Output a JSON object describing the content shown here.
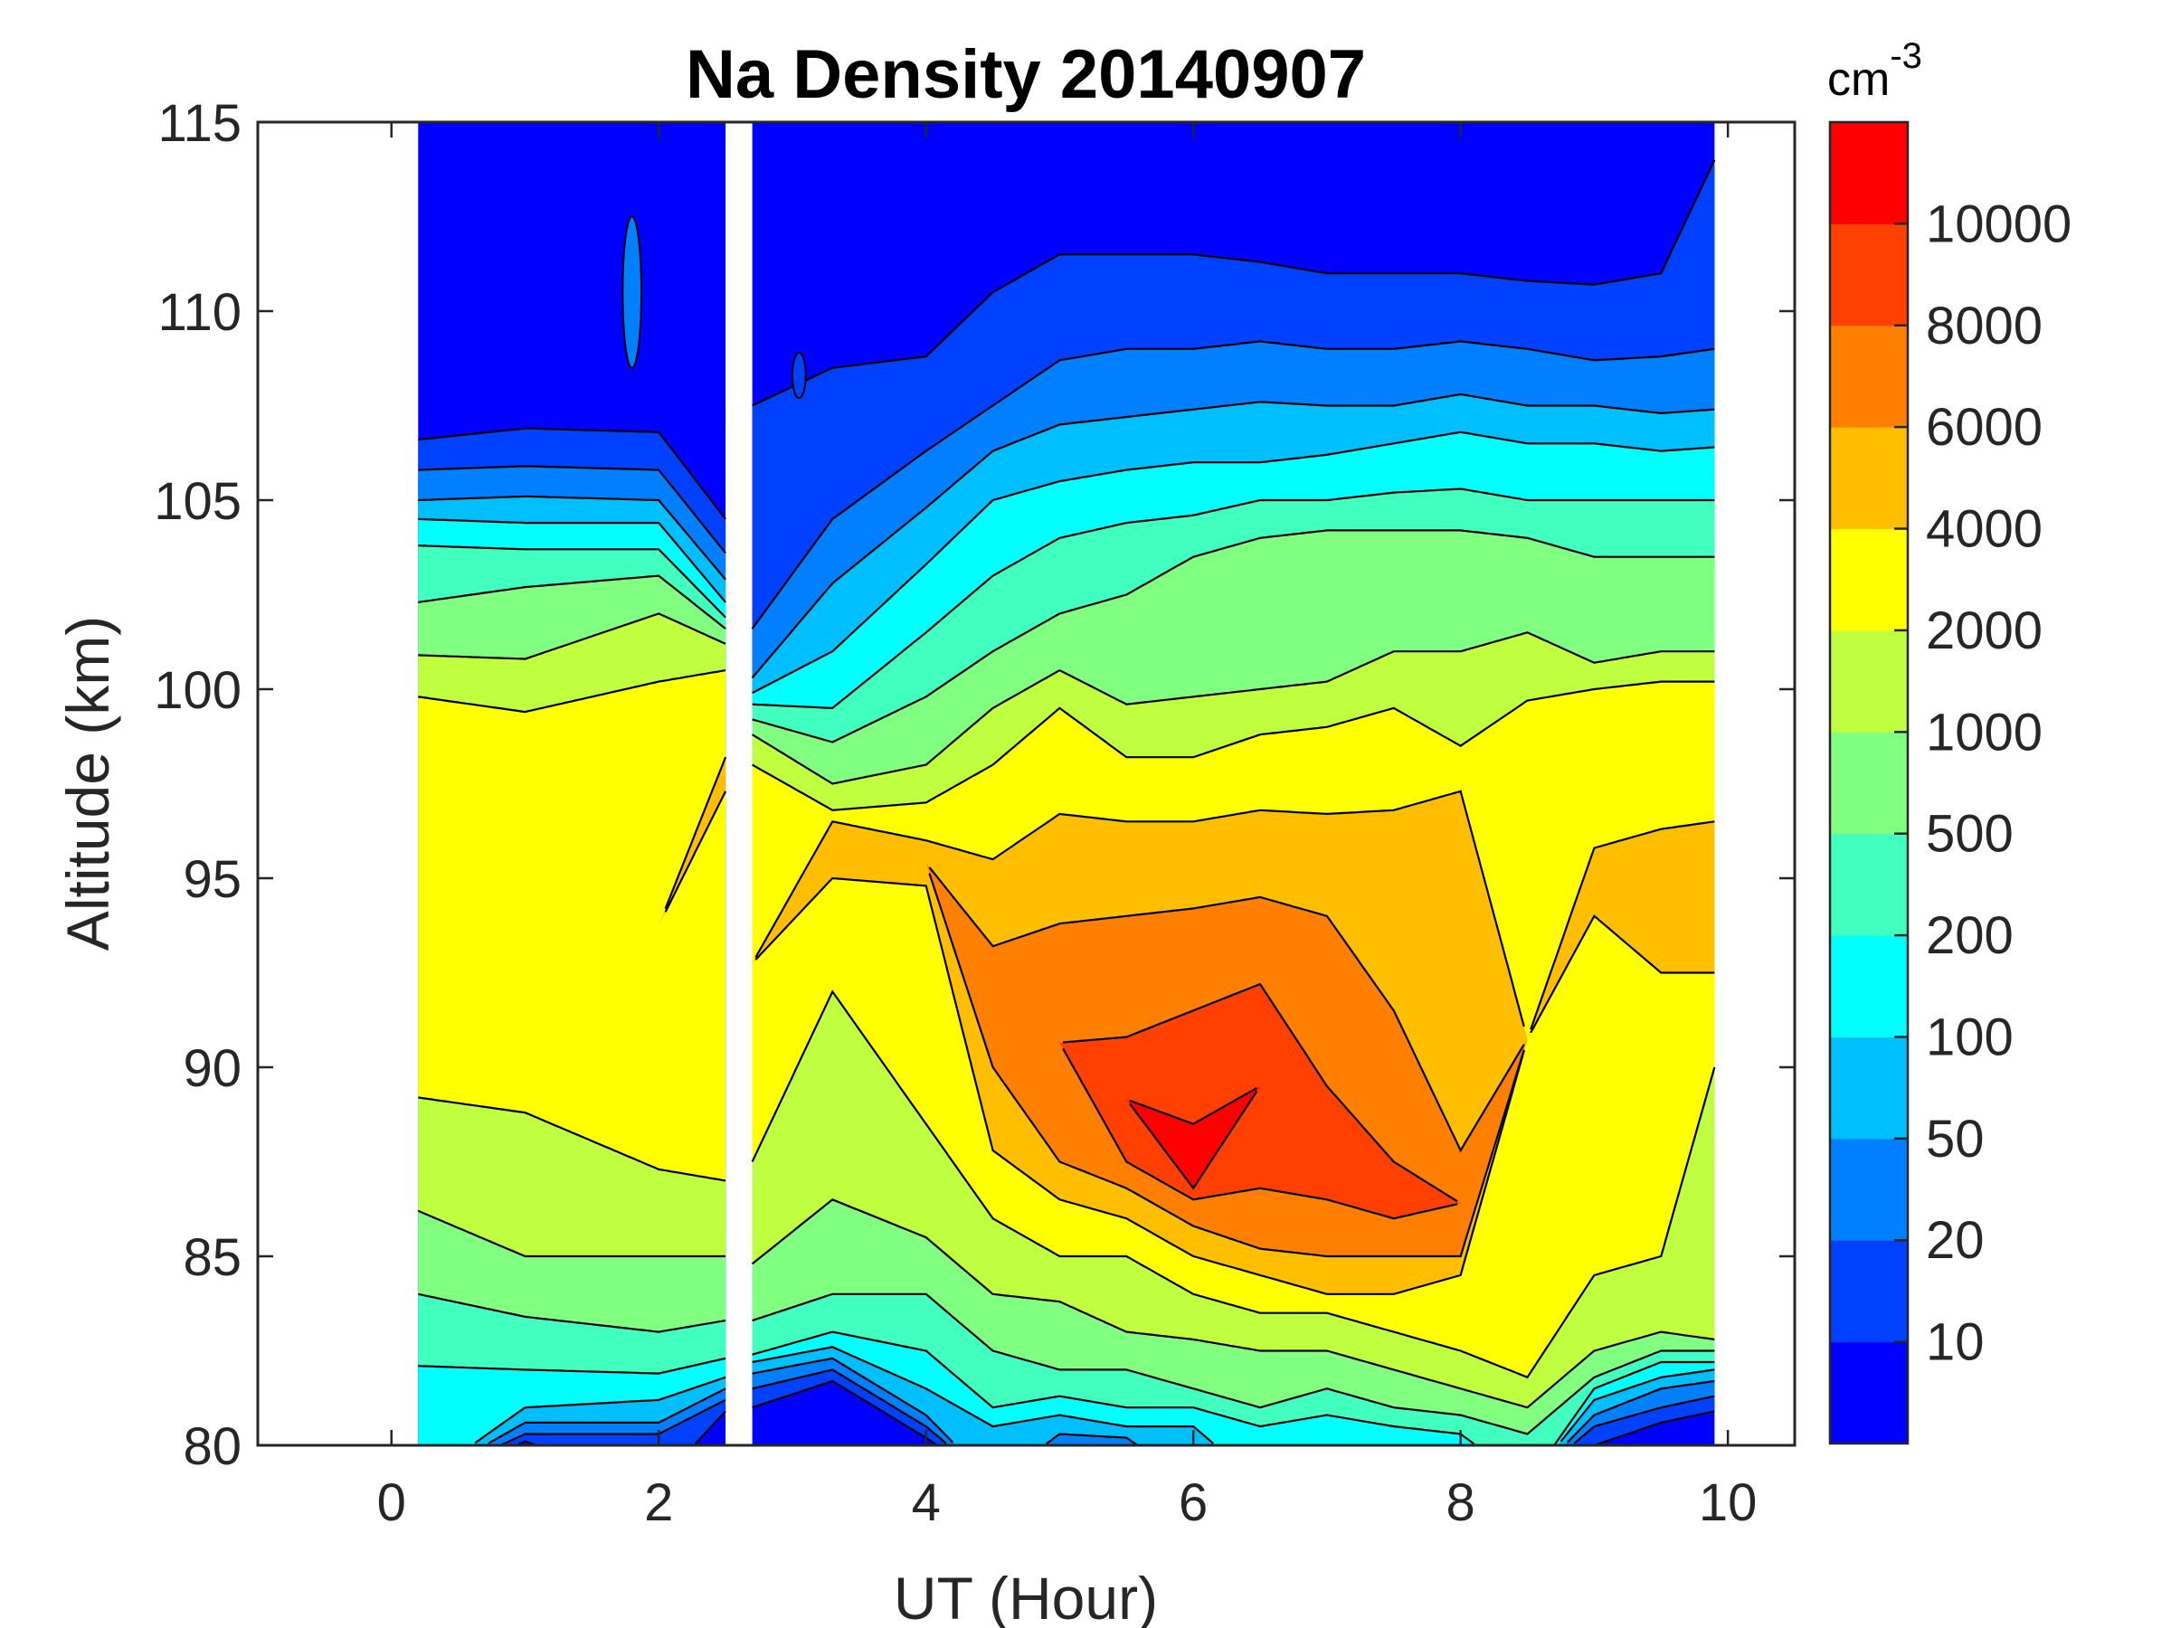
{
  "chart_data": {
    "type": "heatmap",
    "subtype": "filled-contour",
    "title": "Na Density 20140907",
    "xlabel": "UT (Hour)",
    "ylabel": "Altitude (km)",
    "xlim": [
      -1,
      10.5
    ],
    "ylim": [
      80,
      115
    ],
    "xticks": [
      "0",
      "2",
      "4",
      "6",
      "8",
      "10"
    ],
    "xtick_values": [
      0,
      2,
      4,
      6,
      8,
      10
    ],
    "yticks": [
      "80",
      "85",
      "90",
      "95",
      "100",
      "105",
      "110",
      "115"
    ],
    "ytick_values": [
      80,
      85,
      90,
      95,
      100,
      105,
      110,
      115
    ],
    "grid": false,
    "colorbar": {
      "unit": "cm",
      "unit_exponent": "-3",
      "levels": [
        10,
        20,
        50,
        100,
        200,
        500,
        1000,
        2000,
        4000,
        6000,
        8000,
        10000
      ],
      "tick_labels": [
        "10",
        "20",
        "50",
        "100",
        "200",
        "500",
        "1000",
        "2000",
        "4000",
        "6000",
        "8000",
        "10000"
      ],
      "colors": [
        "#0000ff",
        "#0040ff",
        "#0080ff",
        "#00bfff",
        "#00ffff",
        "#40ffbf",
        "#80ff80",
        "#bfff40",
        "#ffff00",
        "#ffbf00",
        "#ff8000",
        "#ff4000",
        "#ff0000"
      ]
    },
    "data_gap_ut": [
      2.5,
      2.7
    ],
    "note": "Each column gives altitude (km) where density crosses each contour level: 'upper' above the layer peak, 'lower' below it (null = extends below 80 km).",
    "columns": [
      {
        "ut": 0.2,
        "upper": [
          106.6,
          105.8,
          105.0,
          104.5,
          103.8,
          102.3,
          100.9,
          99.8
        ],
        "lower": [
          null,
          null,
          null,
          null,
          82.1,
          84.0,
          86.2,
          89.2
        ]
      },
      {
        "ut": 1.0,
        "upper": [
          106.9,
          105.9,
          105.1,
          104.4,
          103.7,
          102.7,
          100.8,
          99.4
        ],
        "lower": [
          80.1,
          80.3,
          80.6,
          81.0,
          82.0,
          83.4,
          85.0,
          88.8
        ]
      },
      {
        "ut": 2.0,
        "upper": [
          106.8,
          105.8,
          105.0,
          104.4,
          103.7,
          103.0,
          102.0,
          100.2
        ],
        "lower": [
          null,
          80.3,
          80.6,
          81.2,
          81.9,
          83.0,
          85.0,
          87.3
        ]
      },
      {
        "ut": 2.5,
        "upper": [
          104.5,
          103.6,
          102.9,
          102.3,
          101.9,
          101.6,
          101.2,
          100.5,
          98.2
        ],
        "lower": [
          80.9,
          81.2,
          81.5,
          81.8,
          82.3,
          83.3,
          85.0,
          87.0,
          97.3
        ]
      },
      {
        "ut": 2.7,
        "upper": [
          107.5,
          101.6,
          100.3,
          99.9,
          99.6,
          99.2,
          98.8,
          98.0
        ],
        "lower": [
          81.0,
          81.5,
          81.9,
          82.2,
          82.4,
          83.3,
          84.8,
          87.5
        ]
      },
      {
        "ut": 3.3,
        "upper": [
          108.5,
          104.5,
          102.8,
          101.0,
          99.5,
          98.6,
          97.5,
          96.8,
          96.5
        ],
        "lower": [
          81.7,
          82.0,
          82.3,
          82.6,
          83.0,
          84.0,
          86.5,
          92.0,
          95.0
        ]
      },
      {
        "ut": 4.0,
        "upper": [
          108.8,
          106.3,
          104.8,
          103.3,
          101.5,
          99.8,
          98.0,
          97.0,
          96.0
        ],
        "lower": [
          80.2,
          80.5,
          80.8,
          81.5,
          82.5,
          84.0,
          85.5,
          88.5,
          94.8
        ]
      },
      {
        "ut": 4.5,
        "upper": [
          110.5,
          107.5,
          106.3,
          105.0,
          103.0,
          101.0,
          99.5,
          98.0,
          95.5,
          93.2
        ],
        "lower": [
          null,
          null,
          null,
          80.5,
          81.0,
          82.5,
          84.0,
          86.0,
          87.8,
          90.0
        ]
      },
      {
        "ut": 5.0,
        "upper": [
          111.5,
          108.7,
          107.0,
          105.5,
          104.0,
          102.0,
          100.5,
          99.5,
          96.7,
          93.8
        ],
        "lower": [
          null,
          null,
          80.3,
          80.8,
          81.3,
          82.0,
          83.8,
          85.0,
          86.5,
          87.5
        ]
      },
      {
        "ut": 5.5,
        "upper": [
          111.5,
          109.0,
          107.2,
          105.8,
          104.4,
          102.5,
          99.6,
          98.2,
          96.5,
          94.0,
          90.8
        ],
        "lower": [
          null,
          null,
          80.2,
          80.5,
          81.0,
          82.0,
          83.0,
          85.0,
          86.0,
          86.8,
          87.5
        ]
      },
      {
        "ut": 6.0,
        "upper": [
          111.5,
          109.0,
          107.4,
          106.0,
          104.6,
          103.5,
          99.8,
          98.2,
          96.5,
          94.2,
          91.5,
          88.5
        ],
        "lower": [
          null,
          null,
          null,
          80.5,
          81.0,
          81.5,
          82.8,
          84.0,
          85.0,
          85.8,
          86.5,
          86.8
        ]
      },
      {
        "ut": 6.5,
        "upper": [
          111.3,
          109.2,
          107.6,
          106.0,
          105.0,
          104.0,
          100.0,
          98.8,
          96.8,
          94.5,
          92.2
        ],
        "lower": [
          null,
          null,
          null,
          null,
          80.5,
          81.0,
          82.5,
          83.5,
          84.5,
          85.2,
          86.8
        ]
      },
      {
        "ut": 7.0,
        "upper": [
          111.0,
          109.0,
          107.5,
          106.2,
          105.0,
          104.2,
          100.2,
          99.0,
          96.7,
          94.0,
          89.5
        ],
        "lower": [
          null,
          null,
          null,
          null,
          80.8,
          81.5,
          82.5,
          83.5,
          84.0,
          85.0,
          86.5
        ]
      },
      {
        "ut": 7.5,
        "upper": [
          111.0,
          109.0,
          107.5,
          106.5,
          105.2,
          104.2,
          101.0,
          99.5,
          96.8,
          91.5,
          87.5
        ],
        "lower": [
          null,
          null,
          null,
          null,
          80.5,
          81.0,
          82.0,
          83.0,
          84.0,
          85.0,
          86.0
        ]
      },
      {
        "ut": 8.0,
        "upper": [
          111.0,
          109.2,
          107.8,
          106.8,
          105.3,
          104.2,
          101.0,
          98.5,
          97.3,
          87.8
        ],
        "lower": [
          null,
          null,
          null,
          null,
          80.3,
          80.8,
          81.5,
          82.5,
          84.5,
          85.0
        ]
      },
      {
        "ut": 8.5,
        "upper": [
          110.8,
          109.0,
          107.5,
          106.5,
          105.0,
          104.0,
          101.5,
          99.7
        ],
        "lower": [
          null,
          null,
          null,
          null,
          null,
          80.3,
          81.0,
          81.8
        ]
      },
      {
        "ut": 9.0,
        "upper": [
          110.7,
          108.7,
          107.5,
          106.5,
          105.0,
          103.5,
          100.7,
          100.0,
          95.8
        ],
        "lower": [
          80.0,
          80.5,
          80.8,
          81.2,
          81.5,
          81.8,
          82.5,
          84.5,
          94.0
        ]
      },
      {
        "ut": 9.5,
        "upper": [
          111.0,
          108.8,
          107.3,
          106.3,
          105.0,
          103.5,
          101.0,
          100.2,
          96.3
        ],
        "lower": [
          80.6,
          81.0,
          81.5,
          81.8,
          82.2,
          82.5,
          83.0,
          85.0,
          92.5
        ]
      },
      {
        "ut": 9.9,
        "upper": [
          114.0,
          109.0,
          107.4,
          106.4,
          105.0,
          103.5,
          101.0,
          100.2,
          96.5
        ],
        "lower": [
          80.9,
          81.3,
          81.7,
          82.0,
          82.2,
          82.5,
          82.8,
          90.0,
          92.5
        ]
      }
    ],
    "islands": [
      {
        "ut": 1.8,
        "alt": 110.5,
        "ut_halfwidth": 0.07,
        "alt_halfheight": 2.0,
        "level_index": 1
      },
      {
        "ut": 3.05,
        "alt": 108.3,
        "ut_halfwidth": 0.05,
        "alt_halfheight": 0.6,
        "level_index": 0
      }
    ]
  }
}
